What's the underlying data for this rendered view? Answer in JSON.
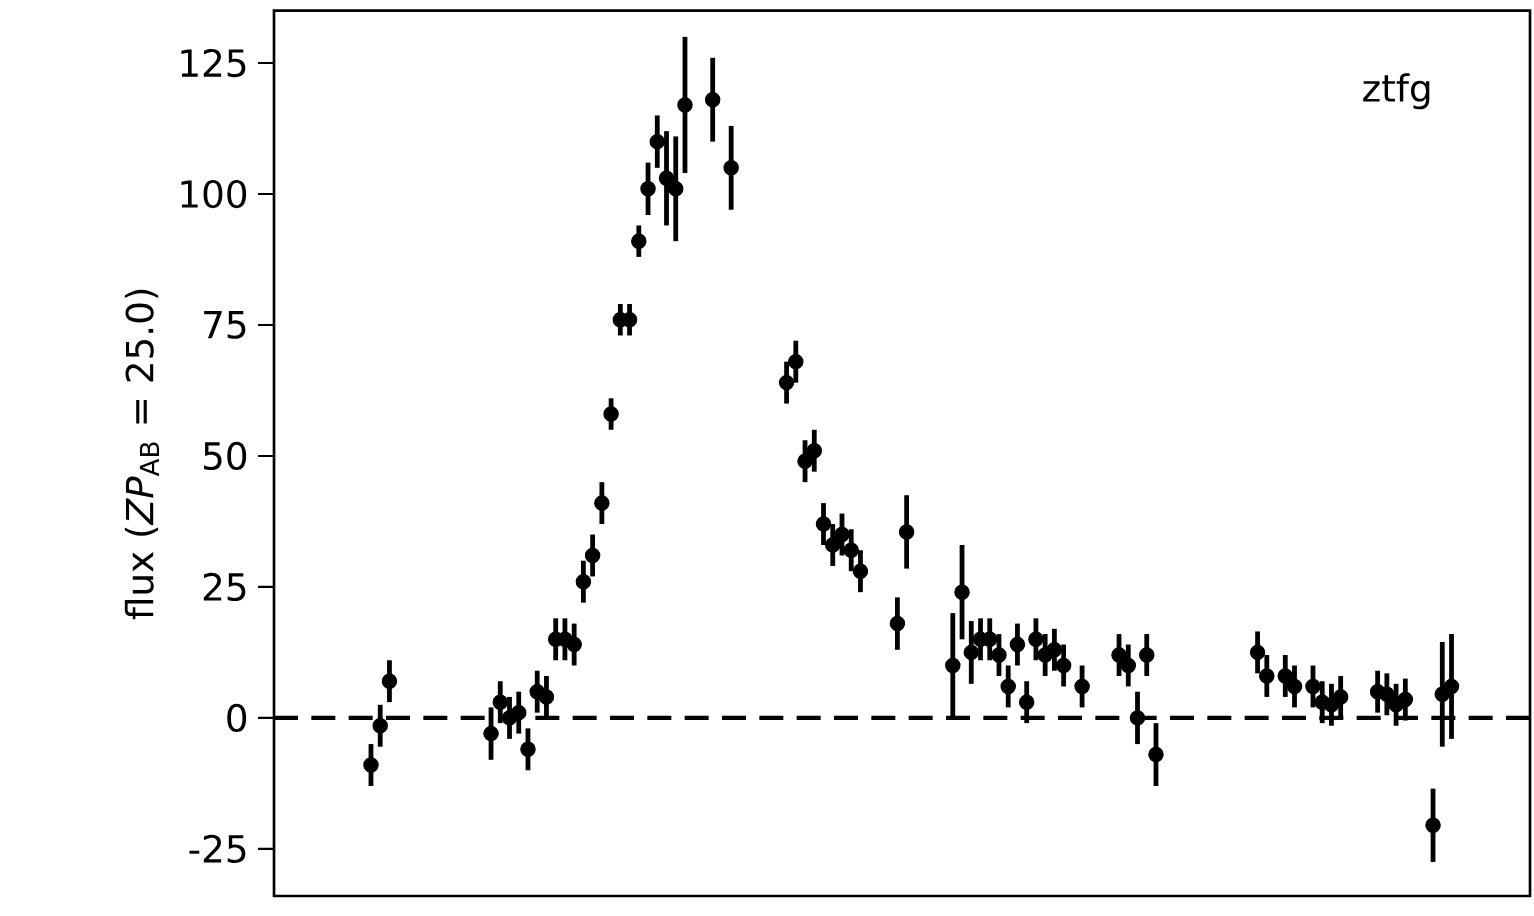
{
  "chart_data": {
    "type": "scatter",
    "ylabel": "flux (*ZP*$_{AB}$ = 25.0)",
    "annotations": [
      "ztfg"
    ],
    "color": "#000000",
    "categories": [
      null,
      null,
      null,
      null,
      null,
      null,
      null,
      null,
      null,
      null,
      null,
      null,
      null,
      null,
      null,
      null,
      null,
      null,
      null,
      null,
      null,
      null,
      null,
      null,
      null,
      null,
      null,
      null,
      null,
      null,
      null,
      null,
      null,
      null,
      null,
      null,
      null,
      null,
      null,
      null,
      null,
      null,
      null,
      null,
      null,
      null,
      null,
      null,
      null,
      null,
      null,
      null,
      null,
      null,
      null,
      null,
      null,
      null,
      null,
      null,
      null,
      null,
      null,
      null,
      null,
      null,
      null,
      null,
      null,
      null,
      null,
      null,
      null,
      null,
      null,
      null,
      null,
      null,
      null,
      null,
      null,
      null,
      null,
      null,
      null,
      null,
      null,
      null,
      null,
      null,
      null,
      null,
      null,
      null,
      null,
      null,
      null,
      null,
      null,
      null,
      null,
      null,
      null,
      null,
      null,
      null,
      null,
      null,
      null,
      null,
      null,
      null,
      null,
      null,
      null,
      null,
      null,
      null,
      null,
      null,
      null,
      null,
      null,
      null,
      null,
      null,
      null,
      null,
      null,
      null,
      null,
      null,
      null,
      null,
      null,
      null
    ],
    "values": [
      null,
      null,
      null,
      null,
      null,
      null,
      null,
      null,
      null,
      null,
      -9,
      -1.5,
      7,
      null,
      null,
      null,
      null,
      null,
      null,
      null,
      null,
      null,
      null,
      -3,
      3,
      0,
      1,
      -6,
      5,
      4,
      15,
      15,
      14,
      26,
      31,
      41,
      58,
      76,
      76,
      91,
      101,
      110,
      103,
      101,
      117,
      null,
      null,
      118,
      null,
      105,
      null,
      null,
      null,
      null,
      null,
      64,
      68,
      49,
      51,
      37,
      33,
      35,
      32,
      28,
      null,
      null,
      null,
      18,
      35.5,
      null,
      null,
      null,
      null,
      10,
      24,
      12.5,
      15,
      15,
      12,
      6,
      14,
      3,
      15,
      12,
      13,
      10,
      null,
      6,
      null,
      null,
      null,
      12,
      10,
      0,
      12,
      -7,
      null,
      null,
      null,
      null,
      null,
      null,
      null,
      null,
      null,
      null,
      12.5,
      8,
      null,
      8,
      6,
      null,
      6,
      3,
      2.5,
      4,
      null,
      null,
      null,
      5,
      4.5,
      2.5,
      3.5,
      null,
      null,
      -20.5,
      4.5,
      6,
      null,
      null,
      null,
      null,
      null,
      null,
      null,
      null
    ],
    "errors": [
      null,
      null,
      null,
      null,
      null,
      null,
      null,
      null,
      null,
      null,
      4,
      4,
      4,
      null,
      null,
      null,
      null,
      null,
      null,
      null,
      null,
      null,
      null,
      5,
      4,
      4,
      4,
      4,
      4,
      4,
      4,
      4,
      4,
      4,
      4,
      4,
      3,
      3,
      3,
      3,
      5,
      5,
      9,
      10,
      13,
      null,
      null,
      8,
      null,
      8,
      null,
      null,
      null,
      null,
      null,
      4,
      4,
      4,
      4,
      4,
      4,
      4,
      4,
      4,
      null,
      null,
      null,
      5,
      7,
      null,
      null,
      null,
      null,
      10,
      9,
      6,
      4,
      4,
      4,
      4,
      4,
      4,
      4,
      4,
      4,
      4,
      null,
      4,
      null,
      null,
      null,
      4,
      4,
      5,
      4,
      6,
      null,
      null,
      null,
      null,
      null,
      null,
      null,
      null,
      null,
      null,
      4,
      4,
      null,
      4,
      4,
      null,
      4,
      4,
      4,
      4,
      null,
      null,
      null,
      4,
      4,
      4,
      4,
      null,
      null,
      7,
      10,
      10,
      null,
      null,
      null,
      null,
      null,
      null,
      null,
      null
    ],
    "ylim": [
      -34,
      135
    ],
    "yticks": [
      -25,
      0,
      25,
      50,
      75,
      100,
      125
    ],
    "ref_lines": [
      {
        "axis": "y",
        "value": 0,
        "color": "#000000",
        "line_style": "dashed"
      }
    ]
  }
}
